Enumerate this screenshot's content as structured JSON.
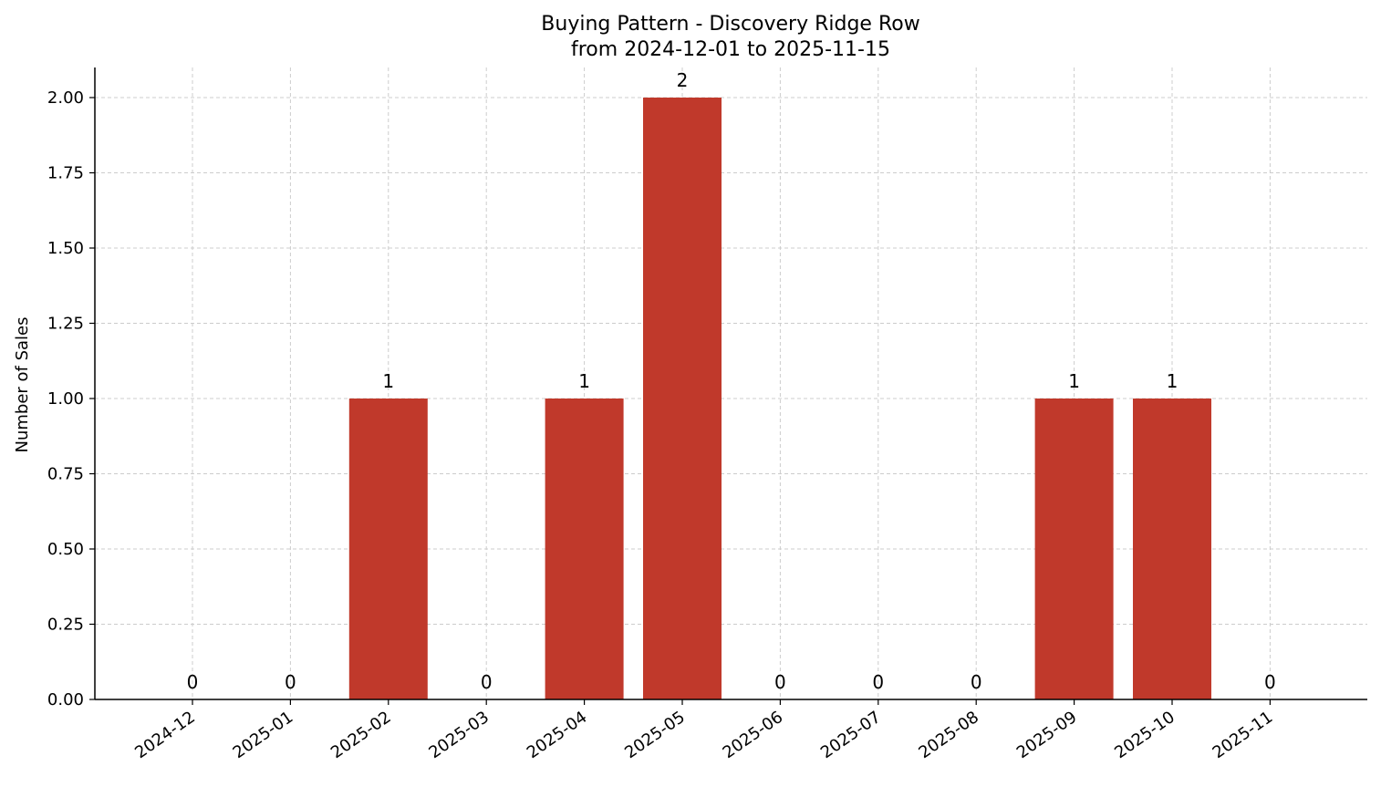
{
  "chart_data": {
    "type": "bar",
    "title": "Buying Pattern - Discovery Ridge Row",
    "subtitle": "from 2024-12-01 to 2025-11-15",
    "xlabel": "",
    "ylabel": "Number of Sales",
    "categories": [
      "2024-12",
      "2025-01",
      "2025-02",
      "2025-03",
      "2025-04",
      "2025-05",
      "2025-06",
      "2025-07",
      "2025-08",
      "2025-09",
      "2025-10",
      "2025-11"
    ],
    "values": [
      0,
      0,
      1,
      0,
      1,
      2,
      0,
      0,
      0,
      1,
      1,
      0
    ],
    "data_labels": [
      "0",
      "0",
      "1",
      "0",
      "1",
      "2",
      "0",
      "0",
      "0",
      "1",
      "1",
      "0"
    ],
    "ylim": [
      0,
      2.1
    ],
    "yticks": [
      "0.00",
      "0.25",
      "0.50",
      "0.75",
      "1.00",
      "1.25",
      "1.50",
      "1.75",
      "2.00"
    ],
    "grid": true,
    "bar_color": "#c0392b"
  }
}
